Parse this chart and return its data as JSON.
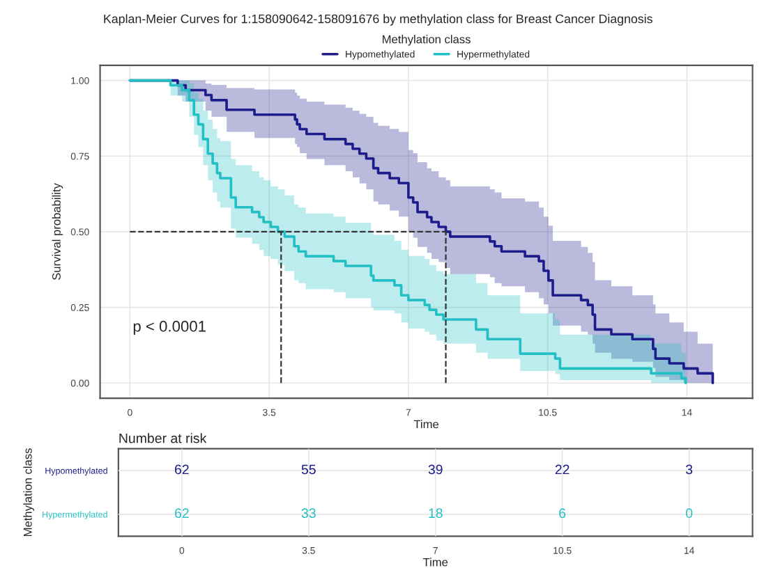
{
  "chart_data": [
    {
      "type": "step",
      "title": "Kaplan-Meier Curves for 1:158090642-158091676 by methylation class for Breast Cancer Diagnosis",
      "xlabel": "Time",
      "ylabel": "Survival probability",
      "legend_title": "Methylation class",
      "legend": "top",
      "grid": true,
      "xlim": [
        -0.75,
        15.65
      ],
      "ylim": [
        -0.05,
        1.05
      ],
      "xticks": [
        0,
        3.5,
        7,
        10.5,
        14
      ],
      "yticks": [
        {
          "value": 0,
          "label": "0.00"
        },
        {
          "value": 0.25,
          "label": "0.25"
        },
        {
          "value": 0.5,
          "label": "0.50"
        },
        {
          "value": 0.75,
          "label": "0.75"
        },
        {
          "value": 1,
          "label": "1.00"
        }
      ],
      "annotations": [
        "p < 0.0001"
      ],
      "ref_lines": [
        {
          "axis": "y",
          "value": 0.5,
          "line_style": "dashed",
          "color": "#333333"
        },
        {
          "axis": "x",
          "value": 3.8,
          "line_style": "dashed",
          "color": "#333333"
        },
        {
          "axis": "x",
          "value": 7.94,
          "line_style": "dashed",
          "color": "#333333"
        }
      ],
      "series": [
        {
          "name": "Hypomethylated",
          "color": "#1c1c8a",
          "x": [
            0,
            1.2,
            1.4,
            1.9,
            2.05,
            2.43,
            3.13,
            4.15,
            4.2,
            4.27,
            4.44,
            4.89,
            5.42,
            5.6,
            5.77,
            5.94,
            6.12,
            6.24,
            6.53,
            6.76,
            7.0,
            7.12,
            7.23,
            7.47,
            7.58,
            7.76,
            7.94,
            8.05,
            9.05,
            9.17,
            9.34,
            9.93,
            10.28,
            10.4,
            10.52,
            10.63,
            11.34,
            11.51,
            11.63,
            11.69,
            12.1,
            12.63,
            13.15,
            13.21,
            13.56,
            13.92,
            14.27,
            14.65
          ],
          "values": [
            1,
            0.984,
            0.968,
            0.952,
            0.935,
            0.903,
            0.887,
            0.871,
            0.855,
            0.839,
            0.823,
            0.806,
            0.79,
            0.774,
            0.758,
            0.742,
            0.71,
            0.694,
            0.677,
            0.661,
            0.613,
            0.597,
            0.565,
            0.548,
            0.532,
            0.516,
            0.5,
            0.484,
            0.468,
            0.452,
            0.435,
            0.419,
            0.403,
            0.371,
            0.339,
            0.29,
            0.274,
            0.258,
            0.226,
            0.177,
            0.161,
            0.145,
            0.113,
            0.081,
            0.065,
            0.048,
            0.032,
            0
          ],
          "upper": [
            1,
            1,
            1,
            0.99,
            0.985,
            0.975,
            0.97,
            0.96,
            0.95,
            0.94,
            0.93,
            0.92,
            0.91,
            0.9,
            0.89,
            0.88,
            0.86,
            0.85,
            0.84,
            0.83,
            0.77,
            0.76,
            0.73,
            0.71,
            0.7,
            0.68,
            0.67,
            0.65,
            0.64,
            0.63,
            0.61,
            0.6,
            0.58,
            0.55,
            0.52,
            0.47,
            0.45,
            0.43,
            0.4,
            0.34,
            0.32,
            0.29,
            0.26,
            0.23,
            0.2,
            0.17,
            0.13,
            0
          ],
          "lower": [
            1,
            0.95,
            0.93,
            0.9,
            0.88,
            0.83,
            0.81,
            0.79,
            0.78,
            0.76,
            0.74,
            0.72,
            0.7,
            0.68,
            0.66,
            0.64,
            0.6,
            0.59,
            0.57,
            0.55,
            0.5,
            0.48,
            0.45,
            0.43,
            0.41,
            0.4,
            0.38,
            0.36,
            0.35,
            0.33,
            0.32,
            0.3,
            0.28,
            0.26,
            0.23,
            0.19,
            0.17,
            0.16,
            0.13,
            0.1,
            0.08,
            0.07,
            0.05,
            0.02,
            0.01,
            0,
            0,
            0
          ]
        },
        {
          "name": "Hypermethylated",
          "color": "#22bfc4",
          "x": [
            0,
            1.02,
            1.31,
            1.49,
            1.61,
            1.72,
            1.84,
            1.96,
            2.08,
            2.19,
            2.27,
            2.54,
            2.66,
            3.07,
            3.25,
            3.36,
            3.54,
            3.72,
            3.89,
            4.13,
            4.24,
            4.42,
            5.12,
            5.42,
            6.06,
            6.12,
            6.65,
            6.82,
            7.0,
            7.41,
            7.53,
            7.7,
            7.88,
            8.7,
            8.99,
            9.81,
            10.69,
            10.81,
            13.1,
            13.86,
            13.97
          ],
          "values": [
            1,
            0.984,
            0.968,
            0.935,
            0.887,
            0.855,
            0.806,
            0.758,
            0.726,
            0.694,
            0.677,
            0.613,
            0.581,
            0.565,
            0.548,
            0.532,
            0.516,
            0.5,
            0.484,
            0.452,
            0.435,
            0.419,
            0.403,
            0.387,
            0.355,
            0.339,
            0.323,
            0.29,
            0.274,
            0.258,
            0.242,
            0.226,
            0.21,
            0.177,
            0.145,
            0.097,
            0.081,
            0.048,
            0.032,
            0.016,
            0
          ],
          "upper": [
            1,
            1,
            1,
            0.99,
            0.96,
            0.94,
            0.9,
            0.87,
            0.84,
            0.81,
            0.8,
            0.74,
            0.72,
            0.7,
            0.68,
            0.67,
            0.65,
            0.64,
            0.62,
            0.59,
            0.58,
            0.56,
            0.55,
            0.53,
            0.5,
            0.49,
            0.47,
            0.44,
            0.42,
            0.41,
            0.39,
            0.37,
            0.36,
            0.33,
            0.29,
            0.23,
            0.21,
            0.16,
            0.13,
            0.1,
            0
          ],
          "lower": [
            1,
            0.95,
            0.93,
            0.88,
            0.82,
            0.78,
            0.72,
            0.67,
            0.63,
            0.6,
            0.58,
            0.51,
            0.48,
            0.46,
            0.44,
            0.42,
            0.41,
            0.39,
            0.37,
            0.34,
            0.33,
            0.31,
            0.3,
            0.28,
            0.25,
            0.24,
            0.23,
            0.2,
            0.18,
            0.17,
            0.16,
            0.14,
            0.13,
            0.1,
            0.08,
            0.04,
            0.03,
            0.01,
            0,
            0,
            0
          ]
        }
      ]
    },
    {
      "type": "heatmap",
      "title": "Number at risk",
      "xlabel": "Time",
      "ylabel": "Methylation class",
      "grid": true,
      "data_labels": true,
      "categories": [
        "0",
        "3.5",
        "7",
        "10.5",
        "14"
      ],
      "y_categories": [
        "Hypomethylated",
        "Hypermethylated"
      ],
      "colors": [
        "#1c1c8a",
        "#22bfc4"
      ],
      "cells": [
        [
          62,
          55,
          39,
          22,
          3
        ],
        [
          62,
          33,
          18,
          6,
          0
        ]
      ]
    }
  ]
}
